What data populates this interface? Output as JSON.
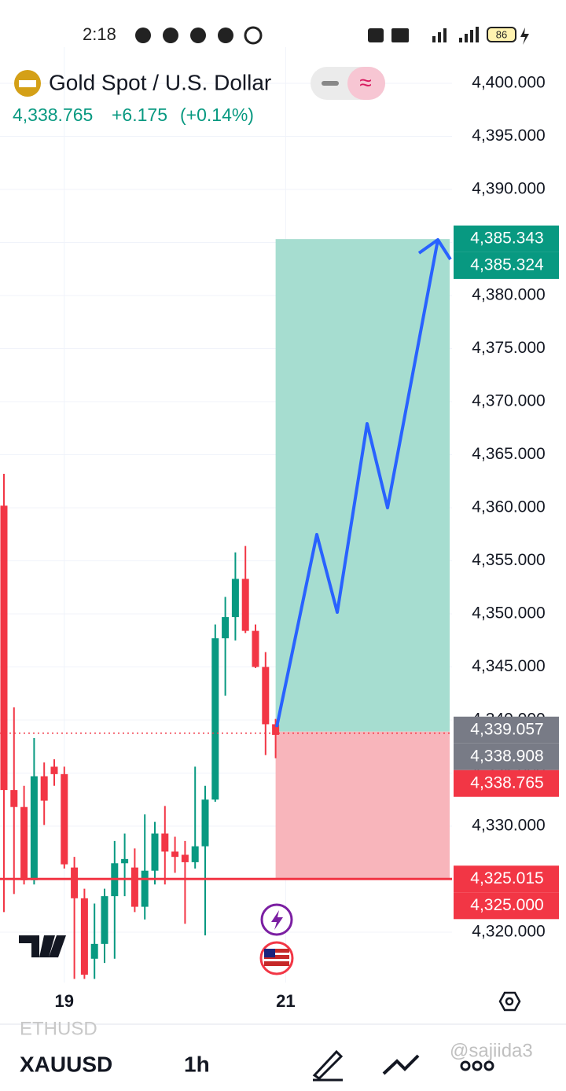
{
  "status_bar": {
    "time": "2:18",
    "battery": "86"
  },
  "header": {
    "title": "Gold Spot / U.S. Dollar",
    "price": "4,338.765",
    "change": "+6.175",
    "change_pct": "(+0.14%)"
  },
  "chart_data": {
    "type": "candlestick",
    "up_color": "#089981",
    "down_color": "#f23645",
    "xlim": [
      -0.39,
      44.53
    ],
    "ylim": [
      4315.26,
      4403.41
    ],
    "xticks": [
      {
        "value": 6,
        "label": "19"
      },
      {
        "value": 28,
        "label": "21"
      }
    ],
    "yticks": [
      {
        "value": 4400,
        "label": "4,400.000"
      },
      {
        "value": 4395,
        "label": "4,395.000"
      },
      {
        "value": 4390,
        "label": "4,390.000"
      },
      {
        "value": 4385,
        "label": "4,385.000"
      },
      {
        "value": 4380,
        "label": "4,380.000"
      },
      {
        "value": 4375,
        "label": "4,375.000"
      },
      {
        "value": 4370,
        "label": "4,370.000"
      },
      {
        "value": 4365,
        "label": "4,365.000"
      },
      {
        "value": 4360,
        "label": "4,360.000"
      },
      {
        "value": 4355,
        "label": "4,355.000"
      },
      {
        "value": 4350,
        "label": "4,350.000"
      },
      {
        "value": 4345,
        "label": "4,345.000"
      },
      {
        "value": 4340,
        "label": "4,340.000"
      },
      {
        "value": 4335,
        "label": "4,335.000"
      },
      {
        "value": 4330,
        "label": "4,330.000"
      },
      {
        "value": 4325,
        "label": "4,325.000"
      },
      {
        "value": 4320,
        "label": "4,320.000"
      }
    ],
    "grid": true,
    "candles": {
      "open": [
        4360.2,
        4333.4,
        4331.8,
        4324.9,
        4334.7,
        4335.6,
        4334.9,
        4326.1,
        4323.2,
        4317.5,
        4318.9,
        4323.4,
        4326.5,
        4326.1,
        4322.4,
        4325.8,
        4329.3,
        4327.6,
        4327.3,
        4326.6,
        4328.1,
        4332.5,
        4347.7,
        4349.7,
        4353.3,
        4348.4,
        4345.0,
        4339.6
      ],
      "high": [
        4363.2,
        4341.2,
        4333.8,
        4338.3,
        4336.0,
        4336.3,
        4335.6,
        4327.1,
        4324.1,
        4322.7,
        4324.1,
        4328.6,
        4329.3,
        4327.9,
        4331.1,
        4330.4,
        4331.9,
        4329.0,
        4328.6,
        4335.6,
        4333.8,
        4349.0,
        4351.6,
        4355.8,
        4356.4,
        4349.0,
        4346.4,
        4340.1
      ],
      "low": [
        4321.9,
        4323.6,
        4324.5,
        4324.5,
        4330.1,
        4333.8,
        4326.0,
        4315.6,
        4315.6,
        4315.6,
        4317.1,
        4317.5,
        4323.4,
        4321.9,
        4321.2,
        4324.5,
        4324.5,
        4325.6,
        4320.8,
        4326.0,
        4319.7,
        4332.3,
        4342.3,
        4347.5,
        4348.2,
        4344.9,
        4336.7,
        4336.4
      ],
      "close": [
        4333.4,
        4331.8,
        4324.9,
        4334.7,
        4332.4,
        4334.9,
        4326.4,
        4323.2,
        4316.0,
        4318.9,
        4323.4,
        4326.5,
        4326.9,
        4322.4,
        4325.8,
        4329.3,
        4327.6,
        4327.1,
        4326.6,
        4328.1,
        4332.5,
        4347.7,
        4349.7,
        4353.3,
        4348.4,
        4345.0,
        4339.6,
        4338.6
      ]
    },
    "position": {
      "start": 27,
      "target": 4385.324,
      "entry": 4338.908,
      "stop": 4325.015,
      "target_color": "#a6ddd0",
      "stop_color": "#f8b5bb"
    },
    "current_price": 4338.765,
    "stop_line": 4325.015,
    "price_tags": [
      {
        "value": 4385.343,
        "label": "4,385.343",
        "color": "#089981"
      },
      {
        "value": 4385.324,
        "label": "4,385.324",
        "color": "#089981"
      },
      {
        "value": 4339.057,
        "label": "4,339.057",
        "color": "#787b86"
      },
      {
        "value": 4338.908,
        "label": "4,338.908",
        "color": "#787b86"
      },
      {
        "value": 4338.765,
        "label": "4,338.765",
        "color": "#f23645"
      },
      {
        "value": 4325.015,
        "label": "4,325.015",
        "color": "#f23645"
      },
      {
        "value": 4325.0,
        "label": "4,325.000",
        "color": "#f23645"
      }
    ]
  },
  "bottom_bar": {
    "previous_symbol": "ETHUSD",
    "symbol": "XAUUSD",
    "interval": "1h",
    "watermark": "@sajiida3"
  }
}
